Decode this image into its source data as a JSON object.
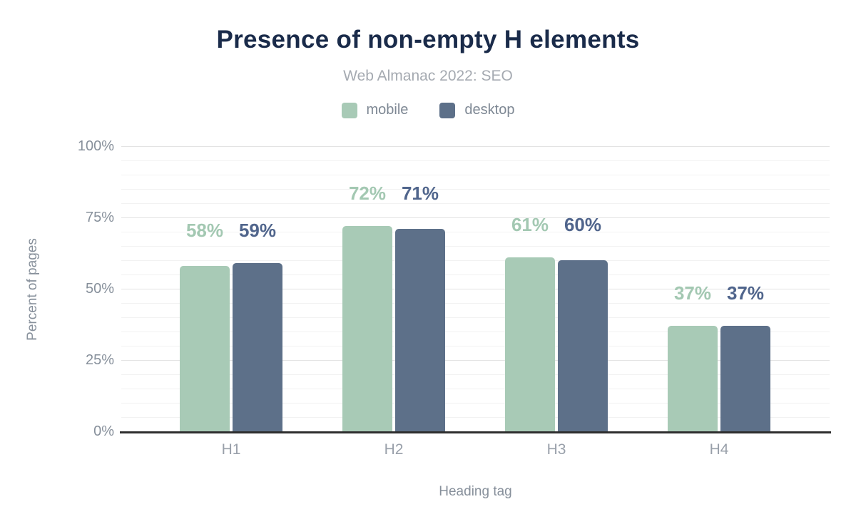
{
  "chart_data": {
    "type": "bar",
    "title": "Presence of non-empty H elements",
    "subtitle": "Web Almanac 2022: SEO",
    "categories": [
      "H1",
      "H2",
      "H3",
      "H4"
    ],
    "series": [
      {
        "name": "mobile",
        "values": [
          58,
          72,
          61,
          37
        ],
        "labels": [
          "58%",
          "72%",
          "61%",
          "37%"
        ],
        "color": "#a8cab6",
        "label_color": "#a3c8b2"
      },
      {
        "name": "desktop",
        "values": [
          59,
          71,
          60,
          37
        ],
        "labels": [
          "59%",
          "71%",
          "60%",
          "37%"
        ],
        "color": "#5d7089",
        "label_color": "#50658c"
      }
    ],
    "xlabel": "Heading tag",
    "ylabel": "Percent of pages",
    "ylim": [
      0,
      100
    ],
    "yticks": [
      {
        "value": 0,
        "label": "0%"
      },
      {
        "value": 25,
        "label": "25%"
      },
      {
        "value": 50,
        "label": "50%"
      },
      {
        "value": 75,
        "label": "75%"
      },
      {
        "value": 100,
        "label": "100%"
      }
    ],
    "grid": "horizontal minor lines every 5%, major every 25%",
    "legend_position": "top",
    "value_suffix": "%"
  },
  "style_tokens": {
    "title_color": "#1a2b4a",
    "subtitle_color": "#a5aab1",
    "axis_text_color": "#87909b",
    "axis_line_color": "#2e2e2e",
    "background_color": "#ffffff"
  }
}
